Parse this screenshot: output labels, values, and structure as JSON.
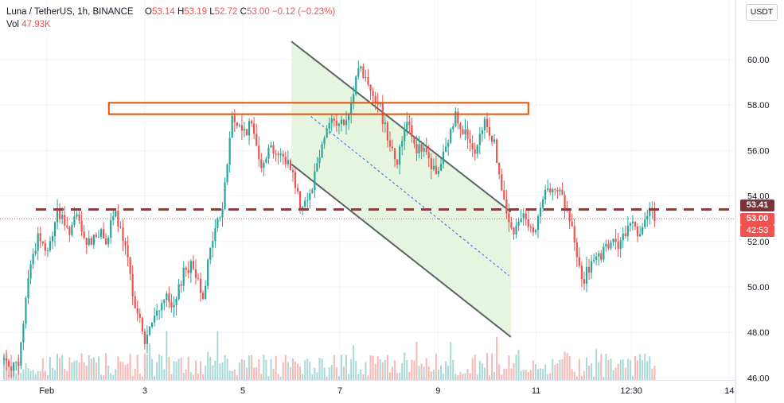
{
  "legend": {
    "symbol": "Luna / TetherUS, 1h, BINANCE",
    "open_label": "O",
    "open": "53.14",
    "high_label": "H",
    "high": "53.19",
    "low_label": "L",
    "low": "52.72",
    "close_label": "C",
    "close": "53.00",
    "change": "−0.12 (−0.23%)",
    "vol_label": "Vol",
    "vol": "47.93K"
  },
  "currency_button": "USDT",
  "price_tags": {
    "horizontal_level": "53.41",
    "last_price": "53.00",
    "countdown": "42:53"
  },
  "colors": {
    "up": "#26a69a",
    "down": "#ef5350",
    "resistance_box": "#e65100",
    "dashed_level": "#8d3e43",
    "channel_fill": "#e3f4dd",
    "channel_line": "#5d6464",
    "midline": "#2962ff"
  },
  "chart_data": {
    "type": "candlestick",
    "symbol": "Luna / TetherUS",
    "interval": "1h",
    "exchange": "BINANCE",
    "y_axis": {
      "ticks": [
        46,
        48,
        50,
        52,
        54,
        56,
        58,
        60
      ],
      "tick_labels": [
        "46.00",
        "48.00",
        "50.00",
        "52.00",
        "54.00",
        "56.00",
        "58.00",
        "60.00"
      ]
    },
    "x_axis": {
      "tick_labels": [
        "Feb",
        "3",
        "5",
        "7",
        "9",
        "11",
        "12:30",
        "14"
      ]
    },
    "close_path": [
      [
        0,
        46.8
      ],
      [
        1.5,
        46.4
      ],
      [
        2.5,
        50.5
      ],
      [
        3.5,
        52.3
      ],
      [
        4.5,
        51.4
      ],
      [
        5.5,
        53.4
      ],
      [
        6.5,
        52.4
      ],
      [
        7.5,
        53.0
      ],
      [
        8.5,
        51.8
      ],
      [
        9.5,
        52.4
      ],
      [
        10.5,
        52.1
      ],
      [
        11.5,
        53.2
      ],
      [
        12.5,
        51.6
      ],
      [
        13.5,
        49.3
      ],
      [
        14.5,
        47.6
      ],
      [
        15.5,
        48.6
      ],
      [
        16.5,
        49.6
      ],
      [
        17.5,
        48.9
      ],
      [
        18.5,
        50.8
      ],
      [
        19.5,
        50.9
      ],
      [
        20.5,
        49.7
      ],
      [
        21.5,
        52.2
      ],
      [
        22.5,
        53.5
      ],
      [
        23.5,
        57.5
      ],
      [
        24.5,
        56.8
      ],
      [
        25.5,
        57.1
      ],
      [
        26.5,
        55.5
      ],
      [
        27.5,
        56.2
      ],
      [
        28.5,
        55.7
      ],
      [
        29.5,
        55.4
      ],
      [
        30.5,
        53.6
      ],
      [
        31.5,
        54.1
      ],
      [
        32.5,
        55.9
      ],
      [
        33.5,
        57.4
      ],
      [
        34.5,
        57.1
      ],
      [
        35.5,
        57.3
      ],
      [
        36.5,
        59.8
      ],
      [
        37.5,
        58.9
      ],
      [
        38.5,
        58.2
      ],
      [
        39.5,
        56.7
      ],
      [
        40.5,
        55.5
      ],
      [
        41.5,
        57.5
      ],
      [
        42.5,
        56.1
      ],
      [
        43.5,
        55.8
      ],
      [
        44.5,
        54.9
      ],
      [
        45.5,
        56.0
      ],
      [
        46.5,
        57.6
      ],
      [
        47.5,
        56.8
      ],
      [
        48.5,
        55.6
      ],
      [
        49.5,
        57.3
      ],
      [
        50.5,
        56.3
      ],
      [
        51.5,
        53.6
      ],
      [
        52.5,
        52.2
      ],
      [
        53.5,
        53.5
      ],
      [
        54.5,
        52.1
      ],
      [
        55.5,
        53.8
      ],
      [
        56.5,
        54.6
      ],
      [
        57.5,
        53.9
      ],
      [
        58.5,
        52.5
      ],
      [
        59.5,
        50.2
      ],
      [
        60.5,
        51.0
      ],
      [
        61.5,
        51.3
      ],
      [
        62.5,
        52.0
      ],
      [
        63.5,
        51.8
      ],
      [
        64.5,
        52.9
      ],
      [
        65.5,
        52.4
      ],
      [
        66.5,
        53.2
      ],
      [
        67,
        53.0
      ]
    ],
    "volume_note": "volume bars along bottom, colored by candle direction",
    "annotations": {
      "resistance_box": {
        "y_top": 58.1,
        "y_bottom": 57.6,
        "x_start": 10.8,
        "x_end": 54.0
      },
      "dashed_level": 53.41,
      "descending_channel": {
        "upper": [
          [
            29.6,
            60.8
          ],
          [
            52.2,
            53.3
          ]
        ],
        "lower": [
          [
            29.6,
            55.4
          ],
          [
            52.2,
            47.8
          ]
        ],
        "midline": [
          [
            31.6,
            57.5
          ],
          [
            52.0,
            50.5
          ]
        ]
      },
      "last_price": 53.0
    }
  }
}
